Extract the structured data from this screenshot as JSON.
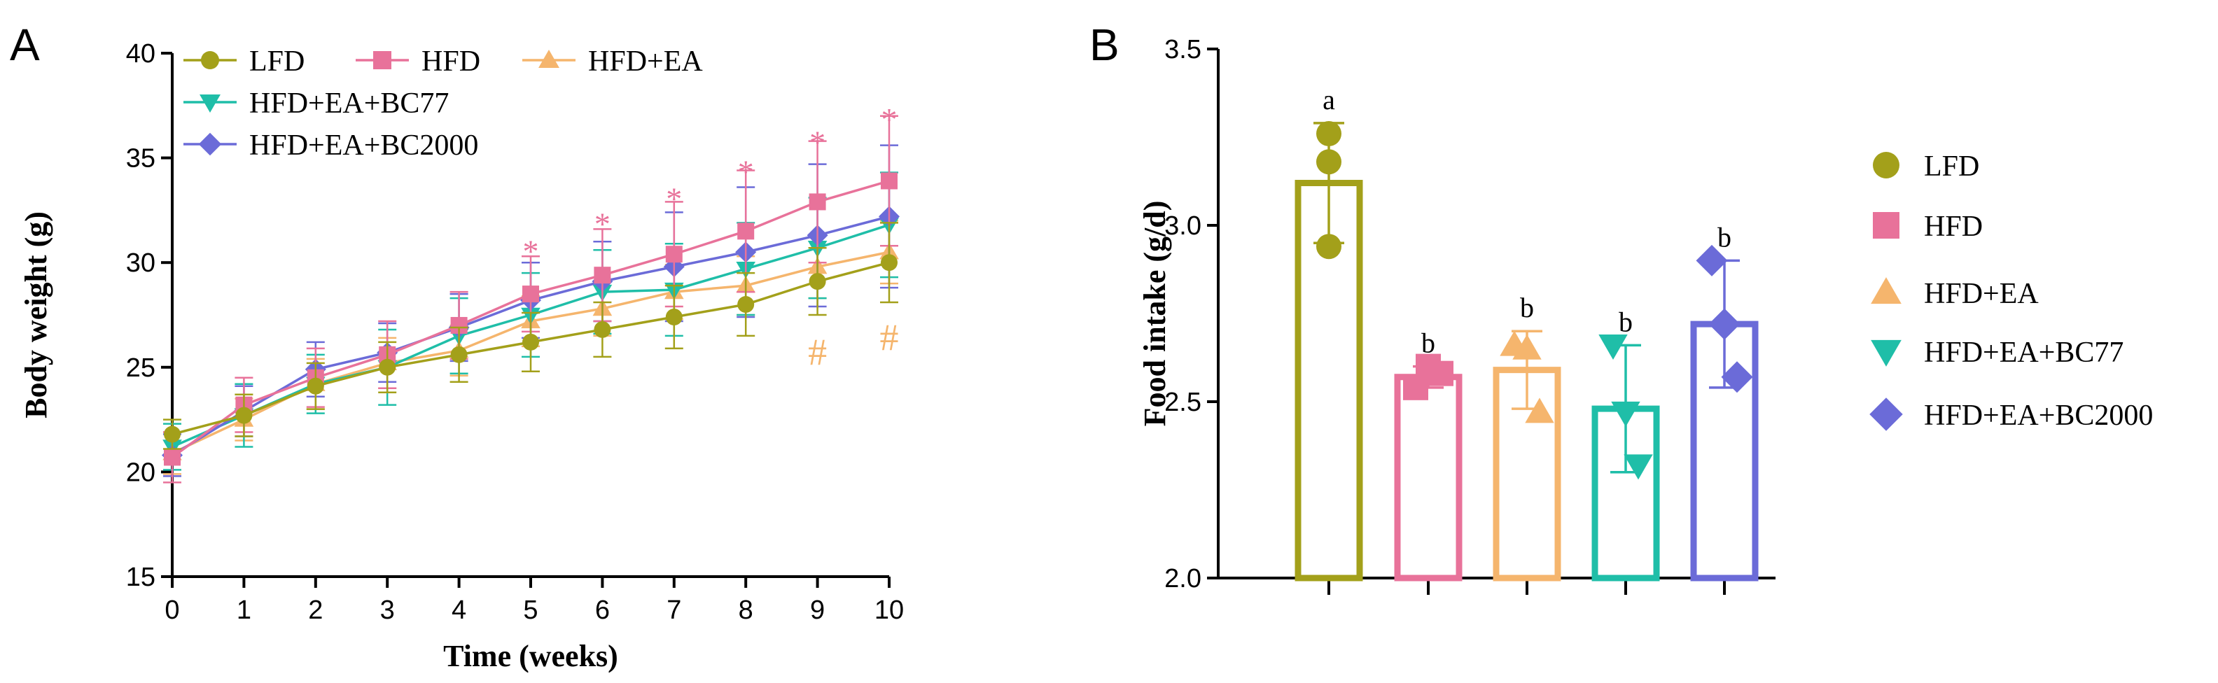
{
  "figure": {
    "panels": [
      "A",
      "B"
    ]
  },
  "colors": {
    "LFD": "#a3a01a",
    "HFD": "#e8729a",
    "HFD+EA": "#f5b56d",
    "HFD+EA+BC77": "#1fbea8",
    "HFD+EA+BC2000": "#6b6bd8",
    "axis": "#000000"
  },
  "chart_data": [
    {
      "panel": "A",
      "type": "line",
      "xlabel": "Time (weeks)",
      "ylabel": "Body weight (g)",
      "xlim": [
        0,
        10
      ],
      "ylim": [
        15,
        40
      ],
      "xticks": [
        0,
        1,
        2,
        3,
        4,
        5,
        6,
        7,
        8,
        9,
        10
      ],
      "yticks": [
        15,
        20,
        25,
        30,
        35,
        40
      ],
      "x": [
        0,
        1,
        2,
        3,
        4,
        5,
        6,
        7,
        8,
        9,
        10
      ],
      "legend_position": "top-left",
      "series": [
        {
          "name": "HFD+EA",
          "marker": "triangle-up",
          "values": [
            20.9,
            22.5,
            24.2,
            25.2,
            25.8,
            27.2,
            27.8,
            28.6,
            28.9,
            29.8,
            30.5
          ],
          "error": [
            1.0,
            1.0,
            1.2,
            1.2,
            1.2,
            1.2,
            1.3,
            1.3,
            1.4,
            1.5,
            1.5
          ]
        },
        {
          "name": "HFD+EA+BC77",
          "marker": "triangle-down",
          "values": [
            21.2,
            22.7,
            24.2,
            25.0,
            26.5,
            27.5,
            28.6,
            28.7,
            29.7,
            30.7,
            31.8
          ],
          "error": [
            1.1,
            1.5,
            1.4,
            1.8,
            1.8,
            2.0,
            2.0,
            2.2,
            2.2,
            2.4,
            2.5
          ]
        },
        {
          "name": "HFD+EA+BC2000",
          "marker": "diamond",
          "values": [
            20.8,
            22.9,
            24.9,
            25.7,
            26.9,
            28.2,
            29.1,
            29.8,
            30.5,
            31.3,
            32.2
          ],
          "error": [
            1.0,
            1.2,
            1.3,
            1.4,
            1.6,
            1.8,
            1.9,
            2.6,
            3.1,
            3.4,
            3.4
          ]
        },
        {
          "name": "HFD",
          "marker": "square",
          "values": [
            20.7,
            23.2,
            24.5,
            25.6,
            27.0,
            28.5,
            29.4,
            30.4,
            31.5,
            32.9,
            33.9
          ],
          "error": [
            1.2,
            1.3,
            1.4,
            1.6,
            1.6,
            1.8,
            2.2,
            2.5,
            2.9,
            2.9,
            3.1
          ]
        },
        {
          "name": "LFD",
          "marker": "circle",
          "values": [
            21.8,
            22.7,
            24.1,
            25.0,
            25.6,
            26.2,
            26.8,
            27.4,
            28.0,
            29.1,
            30.0
          ],
          "error": [
            0.7,
            1.0,
            1.1,
            1.2,
            1.3,
            1.4,
            1.3,
            1.5,
            1.5,
            1.6,
            1.9
          ]
        }
      ],
      "legend_order": [
        "LFD",
        "HFD",
        "HFD+EA",
        "HFD+EA+BC77",
        "HFD+EA+BC2000"
      ],
      "annotations": [
        {
          "text": "*",
          "x": 5,
          "y": 31.1,
          "series": "HFD"
        },
        {
          "text": "*",
          "x": 6,
          "y": 32.4,
          "series": "HFD"
        },
        {
          "text": "*",
          "x": 7,
          "y": 33.6,
          "series": "HFD"
        },
        {
          "text": "*",
          "x": 8,
          "y": 34.9,
          "series": "HFD"
        },
        {
          "text": "*",
          "x": 9,
          "y": 36.3,
          "series": "HFD"
        },
        {
          "text": "*",
          "x": 10,
          "y": 37.4,
          "series": "HFD"
        },
        {
          "text": "#",
          "x": 9,
          "y": 25.8,
          "series": "HFD+EA"
        },
        {
          "text": "#",
          "x": 10,
          "y": 26.5,
          "series": "HFD+EA"
        }
      ]
    },
    {
      "panel": "B",
      "type": "bar",
      "ylabel": "Food intake (g/d)",
      "xlabel": "",
      "ylim": [
        2.0,
        3.5
      ],
      "yticks": [
        "2.0",
        "2.5",
        "3.0",
        "3.5"
      ],
      "categories": [
        "LFD",
        "HFD",
        "HFD+EA",
        "HFD+EA+BC77",
        "HFD+EA+BC2000"
      ],
      "values": [
        3.12,
        2.57,
        2.59,
        2.48,
        2.72
      ],
      "error": [
        0.17,
        0.03,
        0.11,
        0.18,
        0.18
      ],
      "points": [
        [
          3.26,
          3.18,
          2.94
        ],
        [
          2.54,
          2.6,
          2.58
        ],
        [
          2.66,
          2.65,
          2.47
        ],
        [
          2.66,
          2.47,
          2.32
        ],
        [
          2.9,
          2.72,
          2.57
        ]
      ],
      "letters": [
        "a",
        "b",
        "b",
        "b",
        "b"
      ],
      "markers": [
        "circle",
        "square",
        "triangle-up",
        "triangle-down",
        "diamond"
      ],
      "legend_position": "right"
    }
  ]
}
